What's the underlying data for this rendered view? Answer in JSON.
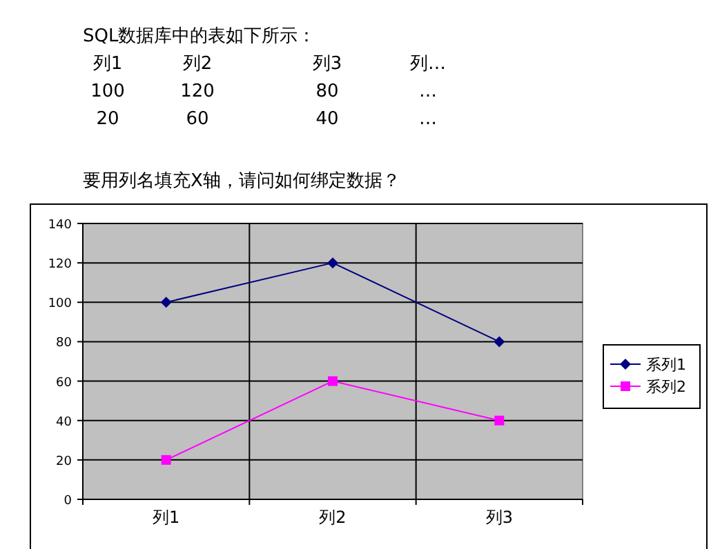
{
  "chart_data": {
    "type": "line",
    "title": "SQL数据库中的表如下所示：",
    "subtitle": "要用列名填充X轴，请问如何绑定数据？",
    "annotations": [
      "列1",
      "列2",
      "列3",
      "列…",
      "100",
      "120",
      "80",
      "…",
      "20",
      "60",
      "40",
      "…"
    ],
    "categories": [
      "列1",
      "列2",
      "列3"
    ],
    "series": [
      {
        "name": "系列1",
        "color": "#000080",
        "values": [
          100,
          120,
          80
        ],
        "marker": "diamond"
      },
      {
        "name": "系列2",
        "color": "#ff00ff",
        "values": [
          20,
          60,
          40
        ],
        "marker": "square"
      }
    ],
    "ylim": [
      0,
      140
    ],
    "yticks": [
      0,
      20,
      40,
      60,
      80,
      100,
      120,
      140
    ],
    "grid": true,
    "legend": "right"
  }
}
